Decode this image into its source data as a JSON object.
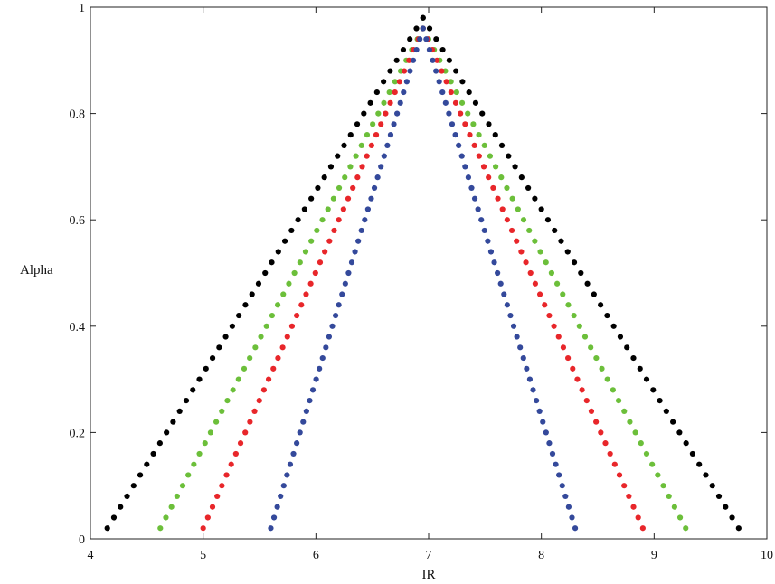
{
  "chart_data": {
    "type": "scatter",
    "title": "",
    "xlabel": "IR",
    "ylabel": "Alpha",
    "xlim": [
      4,
      10
    ],
    "ylim": [
      0,
      1
    ],
    "xticks": [
      "4",
      "5",
      "6",
      "7",
      "8",
      "9",
      "10"
    ],
    "yticks": [
      "0",
      "0.2",
      "0.4",
      "0.6",
      "0.8",
      "1"
    ],
    "grid": false,
    "legend": "none",
    "series": [
      {
        "color": "#000000",
        "apex": [
          6.95,
          0.98
        ],
        "left_base": [
          4.15,
          0.02
        ],
        "right_base": [
          9.75,
          0.02
        ],
        "points_per_side": 49
      },
      {
        "color": "#6cbf3a",
        "apex": [
          6.95,
          0.96
        ],
        "left_base": [
          4.62,
          0.02
        ],
        "right_base": [
          9.28,
          0.02
        ],
        "points_per_side": 48
      },
      {
        "color": "#e8262a",
        "apex": [
          6.95,
          0.96
        ],
        "left_base": [
          5.0,
          0.02
        ],
        "right_base": [
          8.9,
          0.02
        ],
        "points_per_side": 48
      },
      {
        "color": "#34499b",
        "apex": [
          6.95,
          0.96
        ],
        "left_base": [
          5.6,
          0.02
        ],
        "right_base": [
          8.3,
          0.02
        ],
        "points_per_side": 48
      }
    ]
  }
}
